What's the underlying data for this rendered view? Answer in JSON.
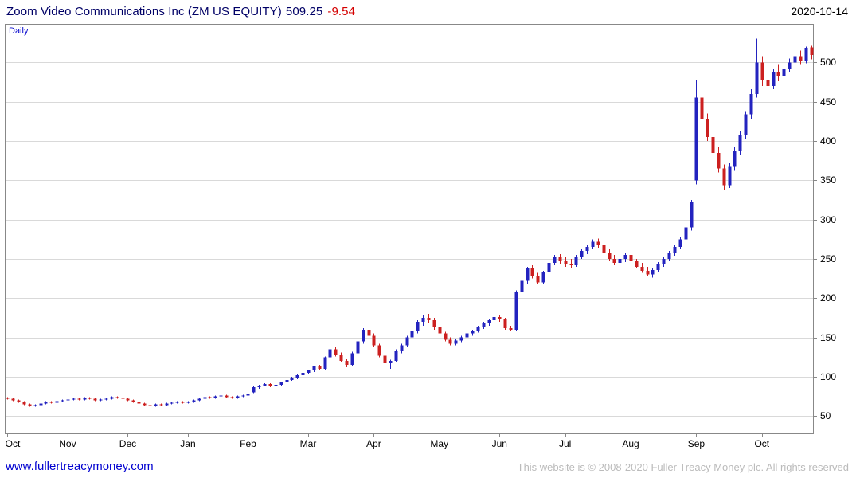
{
  "header": {
    "title": "Zoom Video Communications Inc (ZM US EQUITY)",
    "last_price": "509.25",
    "change": "-9.54",
    "date": "2020-10-14"
  },
  "chart": {
    "interval_label": "Daily"
  },
  "footer": {
    "link": "www.fullertreacymoney.com",
    "copyright": "This website is © 2008-2020 Fuller Treacy Money plc. All rights reserved"
  },
  "colors": {
    "up_candle": "#2323bf",
    "down_candle": "#cc2020",
    "grid": "#d9d9d9",
    "frame": "#888888",
    "axis_text": "#000000",
    "title_text": "#000066",
    "change_text": "#d40000",
    "link_text": "#0000d0",
    "copyright_text": "#bbbbbb"
  },
  "chart_data": {
    "type": "candlestick",
    "title": "Zoom Video Communications Inc (ZM US EQUITY)",
    "interval": "Daily",
    "last_price": 509.25,
    "change": -9.54,
    "date": "2020-10-14",
    "ylim": [
      27,
      549
    ],
    "yticks": [
      50,
      100,
      150,
      200,
      250,
      300,
      350,
      400,
      450,
      500
    ],
    "x_month_labels": [
      "Oct",
      "Nov",
      "Dec",
      "Jan",
      "Feb",
      "Mar",
      "Apr",
      "May",
      "Jun",
      "Jul",
      "Aug",
      "Sep",
      "Oct"
    ],
    "x_month_indices": [
      0,
      11,
      22,
      33,
      44,
      55,
      67,
      79,
      90,
      102,
      114,
      126,
      138
    ],
    "ohlc": [
      [
        73,
        74,
        71,
        72
      ],
      [
        72,
        73,
        69,
        70
      ],
      [
        70,
        71,
        67,
        68
      ],
      [
        68,
        69,
        64,
        65
      ],
      [
        65,
        66,
        62,
        63
      ],
      [
        63,
        65,
        62,
        64
      ],
      [
        64,
        67,
        63,
        66
      ],
      [
        66,
        69,
        65,
        68
      ],
      [
        68,
        69,
        66,
        67
      ],
      [
        67,
        70,
        66,
        69
      ],
      [
        69,
        71,
        68,
        70
      ],
      [
        70,
        72,
        69,
        71
      ],
      [
        71,
        73,
        70,
        72
      ],
      [
        72,
        73,
        70,
        71
      ],
      [
        71,
        74,
        70,
        73
      ],
      [
        73,
        74,
        71,
        72
      ],
      [
        72,
        73,
        69,
        70
      ],
      [
        70,
        72,
        69,
        71
      ],
      [
        71,
        73,
        70,
        72
      ],
      [
        72,
        75,
        71,
        74
      ],
      [
        74,
        75,
        72,
        73
      ],
      [
        73,
        74,
        71,
        72
      ],
      [
        72,
        73,
        69,
        70
      ],
      [
        70,
        71,
        67,
        68
      ],
      [
        68,
        69,
        65,
        66
      ],
      [
        66,
        67,
        63,
        64
      ],
      [
        64,
        65,
        62,
        63
      ],
      [
        63,
        66,
        62,
        65
      ],
      [
        65,
        66,
        63,
        64
      ],
      [
        64,
        67,
        63,
        66
      ],
      [
        66,
        68,
        65,
        67
      ],
      [
        67,
        69,
        66,
        68
      ],
      [
        68,
        69,
        66,
        67
      ],
      [
        67,
        69,
        66,
        68
      ],
      [
        68,
        71,
        67,
        70
      ],
      [
        70,
        73,
        69,
        72
      ],
      [
        72,
        75,
        71,
        74
      ],
      [
        74,
        75,
        72,
        73
      ],
      [
        73,
        76,
        72,
        75
      ],
      [
        75,
        77,
        74,
        76
      ],
      [
        76,
        77,
        73,
        74
      ],
      [
        74,
        75,
        72,
        73
      ],
      [
        73,
        76,
        72,
        75
      ],
      [
        75,
        77,
        74,
        76
      ],
      [
        76,
        79,
        75,
        78
      ],
      [
        80,
        88,
        79,
        87
      ],
      [
        87,
        90,
        85,
        89
      ],
      [
        89,
        92,
        88,
        91
      ],
      [
        91,
        92,
        87,
        88
      ],
      [
        88,
        91,
        86,
        90
      ],
      [
        90,
        94,
        89,
        93
      ],
      [
        93,
        97,
        92,
        96
      ],
      [
        96,
        100,
        95,
        99
      ],
      [
        99,
        103,
        97,
        102
      ],
      [
        102,
        106,
        100,
        105
      ],
      [
        105,
        109,
        103,
        108
      ],
      [
        108,
        114,
        106,
        113
      ],
      [
        113,
        115,
        108,
        110
      ],
      [
        110,
        126,
        109,
        125
      ],
      [
        125,
        137,
        122,
        135
      ],
      [
        135,
        138,
        126,
        128
      ],
      [
        128,
        131,
        118,
        120
      ],
      [
        120,
        123,
        112,
        115
      ],
      [
        115,
        132,
        114,
        130
      ],
      [
        130,
        147,
        128,
        145
      ],
      [
        145,
        162,
        142,
        160
      ],
      [
        160,
        165,
        150,
        152
      ],
      [
        152,
        155,
        138,
        140
      ],
      [
        140,
        142,
        125,
        127
      ],
      [
        127,
        130,
        115,
        117
      ],
      [
        117,
        122,
        110,
        120
      ],
      [
        120,
        135,
        118,
        133
      ],
      [
        133,
        142,
        130,
        140
      ],
      [
        140,
        152,
        138,
        150
      ],
      [
        150,
        160,
        147,
        158
      ],
      [
        158,
        172,
        155,
        170
      ],
      [
        170,
        178,
        165,
        175
      ],
      [
        175,
        180,
        168,
        172
      ],
      [
        172,
        175,
        160,
        163
      ],
      [
        163,
        165,
        152,
        155
      ],
      [
        155,
        157,
        145,
        147
      ],
      [
        147,
        150,
        140,
        142
      ],
      [
        142,
        148,
        140,
        146
      ],
      [
        146,
        152,
        144,
        150
      ],
      [
        150,
        156,
        148,
        155
      ],
      [
        155,
        160,
        152,
        158
      ],
      [
        158,
        165,
        156,
        163
      ],
      [
        163,
        170,
        161,
        168
      ],
      [
        168,
        174,
        165,
        172
      ],
      [
        172,
        178,
        169,
        176
      ],
      [
        176,
        179,
        170,
        173
      ],
      [
        173,
        175,
        160,
        162
      ],
      [
        162,
        165,
        158,
        160
      ],
      [
        160,
        210,
        159,
        208
      ],
      [
        208,
        225,
        205,
        222
      ],
      [
        222,
        240,
        218,
        238
      ],
      [
        238,
        242,
        225,
        228
      ],
      [
        228,
        232,
        218,
        220
      ],
      [
        220,
        235,
        218,
        233
      ],
      [
        233,
        248,
        230,
        245
      ],
      [
        245,
        255,
        242,
        252
      ],
      [
        252,
        256,
        244,
        248
      ],
      [
        248,
        252,
        240,
        244
      ],
      [
        244,
        250,
        238,
        242
      ],
      [
        242,
        255,
        240,
        253
      ],
      [
        253,
        262,
        250,
        260
      ],
      [
        260,
        268,
        256,
        265
      ],
      [
        265,
        275,
        262,
        272
      ],
      [
        272,
        276,
        264,
        267
      ],
      [
        267,
        270,
        255,
        258
      ],
      [
        258,
        262,
        248,
        250
      ],
      [
        250,
        255,
        242,
        245
      ],
      [
        245,
        252,
        240,
        250
      ],
      [
        250,
        258,
        246,
        255
      ],
      [
        255,
        258,
        244,
        247
      ],
      [
        247,
        250,
        238,
        240
      ],
      [
        240,
        245,
        232,
        235
      ],
      [
        235,
        240,
        228,
        230
      ],
      [
        230,
        238,
        226,
        236
      ],
      [
        236,
        246,
        233,
        244
      ],
      [
        244,
        252,
        240,
        250
      ],
      [
        250,
        260,
        247,
        257
      ],
      [
        257,
        268,
        254,
        265
      ],
      [
        265,
        278,
        262,
        275
      ],
      [
        275,
        292,
        272,
        290
      ],
      [
        290,
        325,
        286,
        322
      ],
      [
        350,
        478,
        345,
        455
      ],
      [
        455,
        460,
        420,
        428
      ],
      [
        428,
        435,
        400,
        405
      ],
      [
        405,
        412,
        381,
        385
      ],
      [
        385,
        392,
        360,
        365
      ],
      [
        365,
        370,
        337,
        344
      ],
      [
        344,
        372,
        340,
        368
      ],
      [
        368,
        392,
        362,
        388
      ],
      [
        388,
        412,
        383,
        408
      ],
      [
        408,
        438,
        402,
        434
      ],
      [
        434,
        466,
        428,
        460
      ],
      [
        460,
        530,
        455,
        500
      ],
      [
        500,
        508,
        470,
        478
      ],
      [
        478,
        486,
        462,
        470
      ],
      [
        470,
        492,
        466,
        488
      ],
      [
        488,
        498,
        476,
        482
      ],
      [
        482,
        495,
        478,
        492
      ],
      [
        492,
        505,
        488,
        500
      ],
      [
        500,
        512,
        494,
        508
      ],
      [
        508,
        515,
        498,
        502
      ],
      [
        502,
        520,
        499,
        518.8
      ],
      [
        519,
        521,
        504,
        509.25
      ]
    ]
  }
}
